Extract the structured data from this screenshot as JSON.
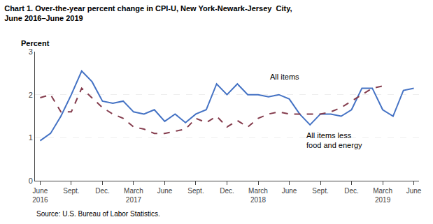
{
  "chart_data": {
    "type": "line",
    "title": "Chart 1. Over-the-year percent change in CPI-U, New York-Newark-Jersey  City,\nJune 2016–June 2019",
    "ylabel": "Percent",
    "source": "Source: U.S. Bureau of Labor Statistics.",
    "categories": [
      "June\n2016",
      null,
      null,
      "Sept.",
      null,
      null,
      "Dec.",
      null,
      null,
      "March\n2017",
      null,
      null,
      "June",
      null,
      null,
      "Sept.",
      null,
      null,
      "Dec.",
      null,
      null,
      "March\n2018",
      null,
      null,
      "June",
      null,
      null,
      "Sept.",
      null,
      null,
      "Dec.",
      null,
      null,
      "March\n2019",
      null,
      null,
      "June"
    ],
    "series": [
      {
        "color": "#4472C4",
        "line_style": "solid",
        "values": [
          0.93,
          1.1,
          1.5,
          2.0,
          2.55,
          2.3,
          1.85,
          1.8,
          1.85,
          1.6,
          1.55,
          1.65,
          1.38,
          1.55,
          1.35,
          1.55,
          1.65,
          2.25,
          2.0,
          2.25,
          2.0,
          2.0,
          1.95,
          2.0,
          1.9,
          1.55,
          1.3,
          1.55,
          1.55,
          1.5,
          1.65,
          2.15,
          2.15,
          1.65,
          1.5,
          2.1,
          2.15
        ]
      },
      {
        "color": "#843C4D",
        "line_style": "dashed",
        "values": [
          1.93,
          2.0,
          1.6,
          1.6,
          2.15,
          1.92,
          1.7,
          1.55,
          1.45,
          1.25,
          1.2,
          1.1,
          1.1,
          1.15,
          1.2,
          1.45,
          1.35,
          1.5,
          1.25,
          1.4,
          1.25,
          1.45,
          1.55,
          1.6,
          1.55,
          1.55,
          1.55,
          1.55,
          1.6,
          1.7,
          1.85,
          2.0,
          2.15,
          2.2,
          null,
          null,
          null
        ]
      }
    ],
    "ylim": [
      0,
      3
    ],
    "yticks": [
      0,
      1,
      2,
      3
    ],
    "grid": true,
    "annotations": [
      {
        "text": "All items",
        "x": 22,
        "y": 2.28
      },
      {
        "text": "All items less\nfood and energy",
        "x": 25.5,
        "y": 1.18
      }
    ]
  }
}
